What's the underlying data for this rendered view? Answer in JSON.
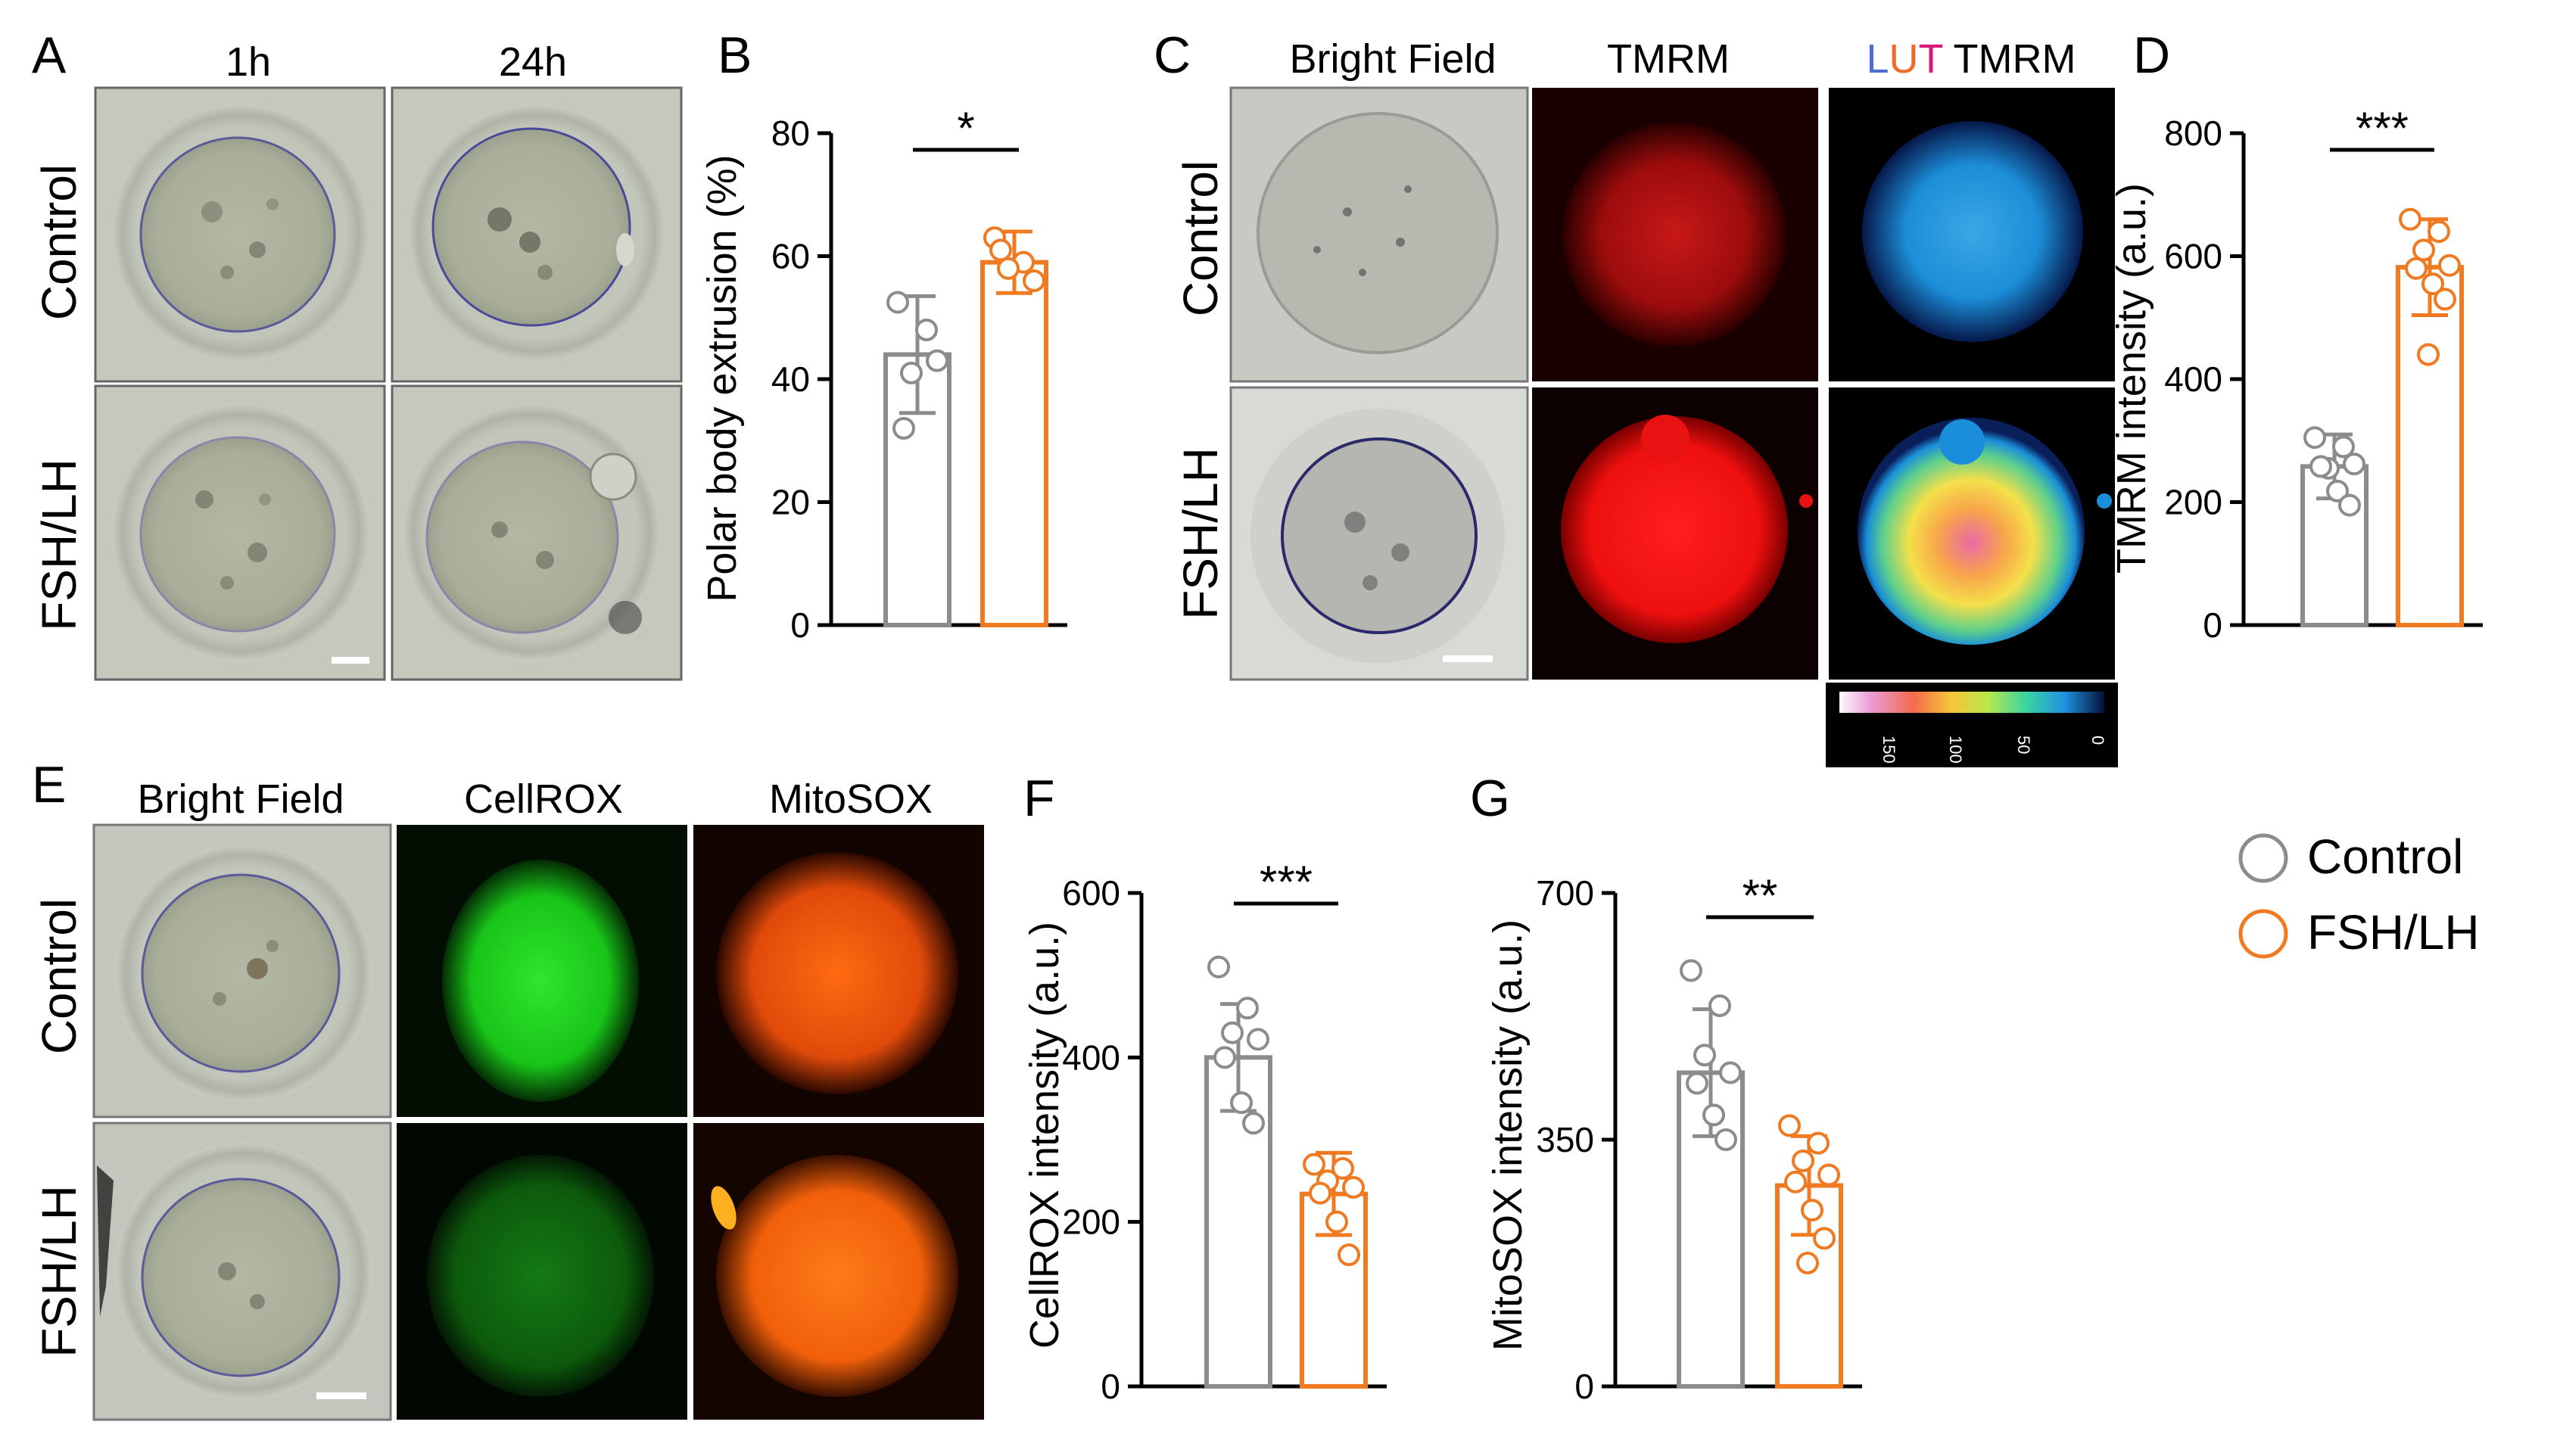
{
  "figure": {
    "panel_letters": [
      "A",
      "B",
      "C",
      "D",
      "E",
      "F",
      "G"
    ],
    "timepoints": [
      "1h",
      "24h"
    ],
    "row_labels": [
      "Control",
      "FSH/LH"
    ],
    "channels_c": [
      "Bright Field",
      "TMRM"
    ],
    "lut_title": {
      "l": "L",
      "u": "U",
      "t": "T",
      "rest": " TMRM"
    },
    "lut_scale": {
      "ticks": [
        "150",
        "100",
        "50",
        "0"
      ]
    },
    "channels_e": [
      "Bright Field",
      "CellROX",
      "MitoSOX"
    ],
    "legend": [
      {
        "label": "Control",
        "color": "#8c8c8c"
      },
      {
        "label": "FSH/LH",
        "color": "#f07a22"
      }
    ],
    "colors": {
      "control": "#8c8c8c",
      "fsh": "#f07a22",
      "lut_l": "#4a6fd0",
      "lut_u": "#ee6a2a",
      "lut_t": "#d61a7a"
    }
  },
  "chart_data": [
    {
      "panel": "B",
      "type": "bar",
      "categories": [
        "Control",
        "FSH/LH"
      ],
      "ylabel": "Polar body extrusion (%)",
      "ylim": [
        0,
        80
      ],
      "yticks": [
        0,
        20,
        40,
        60,
        80
      ],
      "significance": "*",
      "series": [
        {
          "name": "Control",
          "mean": 44,
          "sd": 9.5,
          "points": [
            52.5,
            48,
            41,
            43,
            32
          ]
        },
        {
          "name": "FSH/LH",
          "mean": 59,
          "sd": 5,
          "points": [
            63,
            59,
            58,
            56,
            61
          ]
        }
      ]
    },
    {
      "panel": "D",
      "type": "bar",
      "categories": [
        "Control",
        "FSH/LH"
      ],
      "ylabel": "TMRM intensity (a.u.)",
      "ylim": [
        0,
        800
      ],
      "yticks": [
        0,
        200,
        400,
        600,
        800
      ],
      "significance": "***",
      "series": [
        {
          "name": "Control",
          "mean": 258,
          "sd": 52,
          "points": [
            305,
            290,
            255,
            262,
            258,
            218,
            195
          ]
        },
        {
          "name": "FSH/LH",
          "mean": 582,
          "sd": 78,
          "points": [
            660,
            640,
            610,
            585,
            580,
            555,
            530,
            440
          ]
        }
      ]
    },
    {
      "panel": "F",
      "type": "bar",
      "categories": [
        "Control",
        "FSH/LH"
      ],
      "ylabel": "CellROX intensity (a.u.)",
      "ylim": [
        0,
        600
      ],
      "yticks": [
        0,
        200,
        400,
        600
      ],
      "significance": "***",
      "series": [
        {
          "name": "Control",
          "mean": 400,
          "sd": 65,
          "points": [
            510,
            460,
            430,
            422,
            400,
            345,
            320
          ]
        },
        {
          "name": "FSH/LH",
          "mean": 234,
          "sd": 50,
          "points": [
            270,
            265,
            250,
            242,
            235,
            200,
            160
          ]
        }
      ]
    },
    {
      "panel": "G",
      "type": "bar",
      "categories": [
        "Control",
        "FSH/LH"
      ],
      "ylabel": "MitoSOX intensity (a.u.)",
      "ylim": [
        0,
        700
      ],
      "yticks": [
        0,
        350,
        700
      ],
      "significance": "**",
      "series": [
        {
          "name": "Control",
          "mean": 445,
          "sd": 90,
          "points": [
            590,
            540,
            470,
            445,
            430,
            385,
            350
          ]
        },
        {
          "name": "FSH/LH",
          "mean": 285,
          "sd": 70,
          "points": [
            370,
            345,
            320,
            300,
            290,
            250,
            210,
            175
          ]
        }
      ]
    }
  ]
}
